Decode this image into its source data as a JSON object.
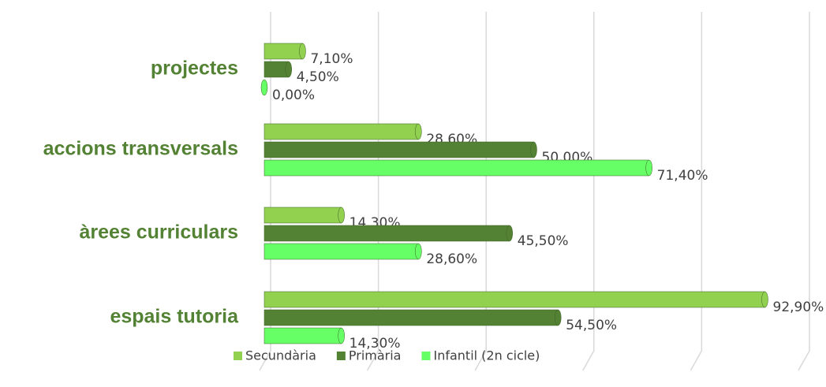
{
  "chart_data": {
    "type": "bar",
    "orientation": "horizontal",
    "categories": [
      "projectes",
      "accions transversals",
      "àrees curriculars",
      "espais tutoria"
    ],
    "series": [
      {
        "name": "Secundària",
        "color": "#92d050",
        "values": [
          7.1,
          28.6,
          14.3,
          92.9
        ],
        "value_labels": [
          "7,10%",
          "28,60%",
          "14,30%",
          "92,90%"
        ]
      },
      {
        "name": "Primària",
        "color": "#548235",
        "values": [
          4.5,
          50.0,
          45.5,
          54.5
        ],
        "value_labels": [
          "4,50%",
          "50,00%",
          "45,50%",
          "54,50%"
        ]
      },
      {
        "name": "Infantil (2n cicle)",
        "color": "#66ff66",
        "values": [
          0.0,
          71.4,
          28.6,
          14.3
        ],
        "value_labels": [
          "0,00%",
          "71,40%",
          "28,60%",
          "14,30%"
        ]
      }
    ],
    "xlim": [
      0,
      100
    ],
    "xticks": [
      0,
      20,
      40,
      60,
      80,
      100
    ],
    "grid": true,
    "legend": "bottom"
  }
}
